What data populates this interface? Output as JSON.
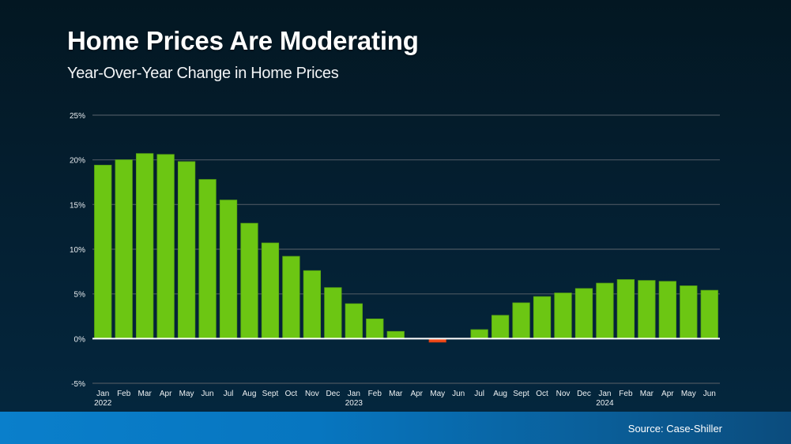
{
  "header": {
    "title": "Home Prices Are Moderating",
    "subtitle": "Year-Over-Year Change in Home Prices"
  },
  "footer": {
    "source": "Source: Case-Shiller"
  },
  "colors": {
    "positive_bar": "#6cc613",
    "negative_bar": "#f04a1a",
    "gridline": "#4a5660",
    "zero_line": "#ffffff",
    "footer_band": "#0a7fcb"
  },
  "chart_data": {
    "type": "bar",
    "title": "Home Prices Are Moderating",
    "subtitle": "Year-Over-Year Change in Home Prices",
    "xlabel": "",
    "ylabel": "",
    "ylim": [
      -5,
      25
    ],
    "yticks": [
      25,
      20,
      15,
      10,
      5,
      0,
      -5
    ],
    "ytick_labels": [
      "25%",
      "20%",
      "15%",
      "10%",
      "5%",
      "0%",
      "-5%"
    ],
    "grid": true,
    "legend": "none",
    "categories": [
      "Jan",
      "Feb",
      "Mar",
      "Apr",
      "May",
      "Jun",
      "Jul",
      "Aug",
      "Sept",
      "Oct",
      "Nov",
      "Dec",
      "Jan",
      "Feb",
      "Mar",
      "Apr",
      "May",
      "Jun",
      "Jul",
      "Aug",
      "Sept",
      "Oct",
      "Nov",
      "Dec",
      "Jan",
      "Feb",
      "Mar",
      "Apr",
      "May",
      "Jun"
    ],
    "year_labels": {
      "0": "2022",
      "12": "2023",
      "24": "2024"
    },
    "values": [
      19.4,
      20.0,
      20.7,
      20.6,
      19.8,
      17.8,
      15.5,
      12.9,
      10.7,
      9.2,
      7.6,
      5.7,
      3.9,
      2.2,
      0.8,
      0.0,
      -0.4,
      0.0,
      1.0,
      2.6,
      4.0,
      4.7,
      5.1,
      5.6,
      6.2,
      6.6,
      6.5,
      6.4,
      5.9,
      5.4
    ],
    "source": "Source: Case-Shiller"
  }
}
